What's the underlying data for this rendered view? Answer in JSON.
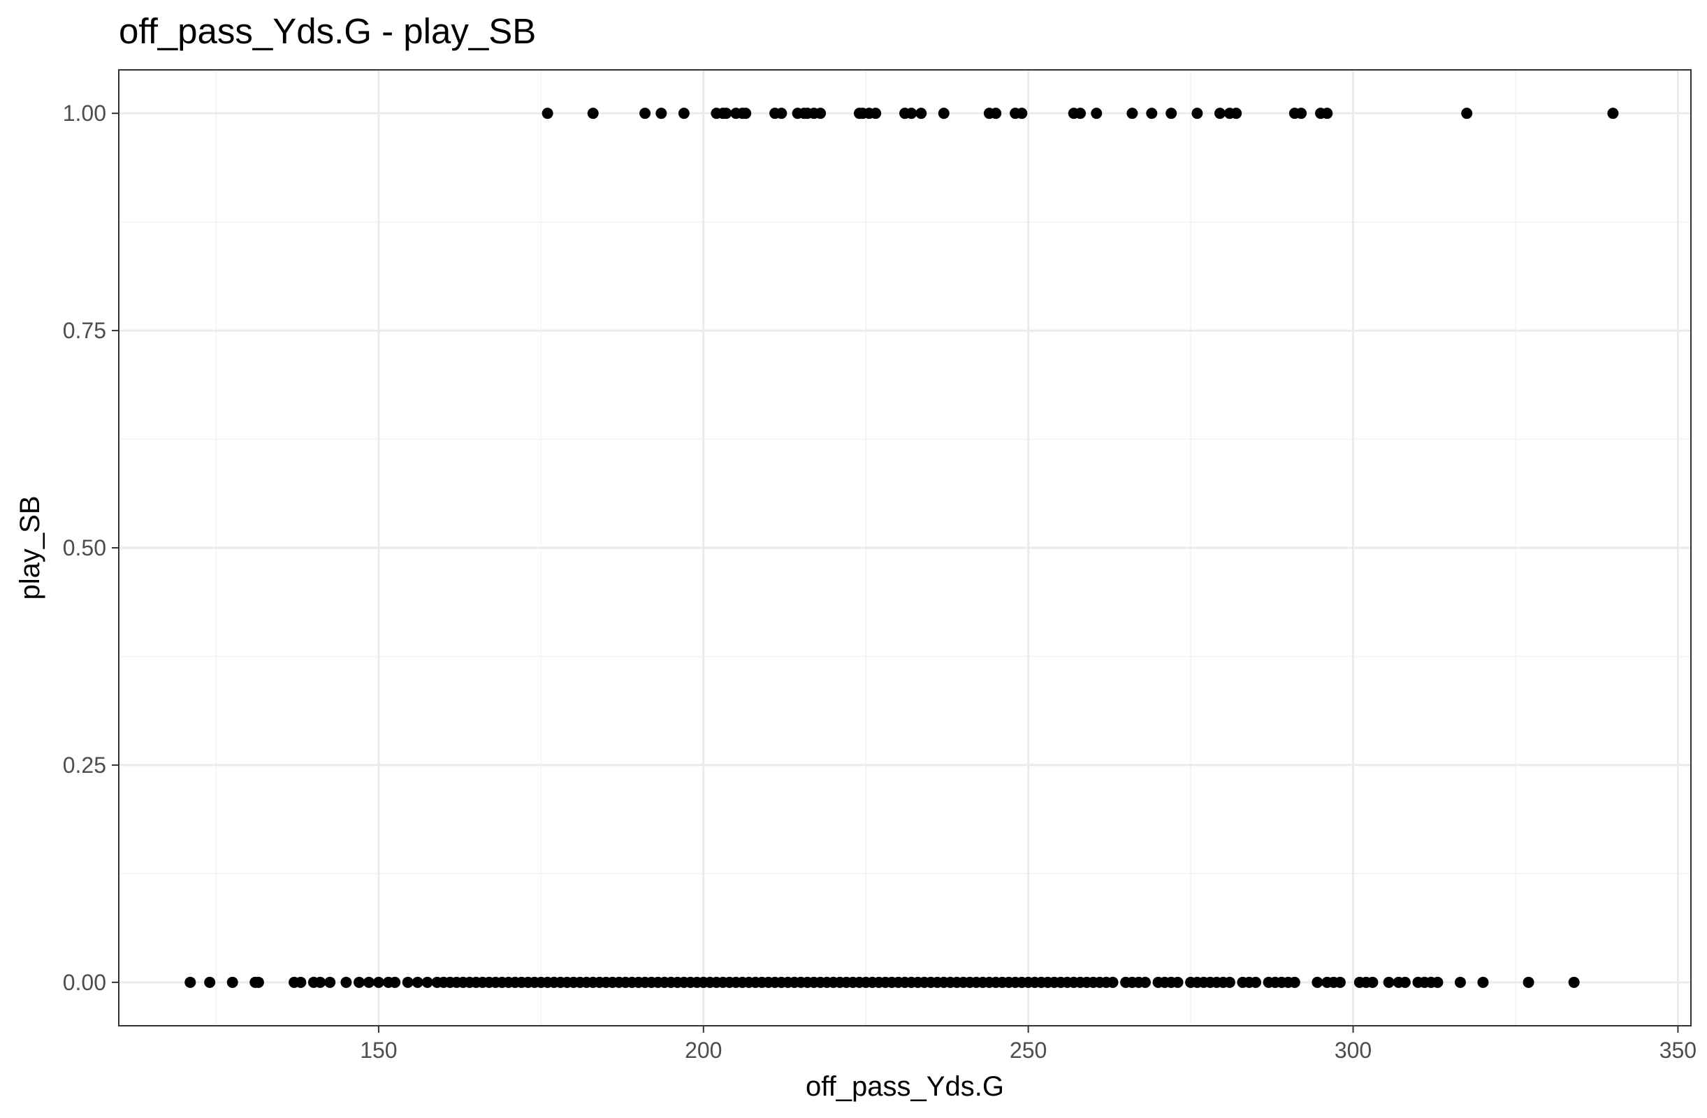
{
  "chart_data": {
    "type": "scatter",
    "title": "off_pass_Yds.G - play_SB",
    "xlabel": "off_pass_Yds.G",
    "ylabel": "play_SB",
    "xlim": [
      110,
      352
    ],
    "ylim": [
      -0.05,
      1.05
    ],
    "x_ticks": [
      150,
      200,
      250,
      300,
      350
    ],
    "x_tick_labels": [
      "150",
      "200",
      "250",
      "300",
      "350"
    ],
    "y_ticks": [
      0,
      0.25,
      0.5,
      0.75,
      1.0
    ],
    "y_tick_labels": [
      "0.00",
      "0.25",
      "0.50",
      "0.75",
      "1.00"
    ],
    "grid": true,
    "point_color": "#000000",
    "series": [
      {
        "y": 1,
        "x": [
          176,
          183,
          191,
          193.5,
          197,
          202,
          203,
          203.5,
          205,
          206,
          206.5,
          211,
          212,
          214.5,
          215.5,
          216,
          217,
          218,
          224,
          224.5,
          225.5,
          226.5,
          231,
          232,
          233.5,
          237,
          244,
          245,
          248,
          249,
          257,
          258,
          260.5,
          266,
          269,
          272,
          276,
          279.5,
          281,
          282,
          291,
          292,
          295,
          296,
          317.5,
          340
        ]
      },
      {
        "y": 0,
        "x": [
          121,
          124,
          127.5,
          131,
          131.5,
          137,
          138,
          140,
          141,
          142.5,
          145,
          147,
          148.5,
          150,
          151.5,
          152.5,
          154.5,
          156,
          157.5,
          159,
          160,
          161,
          162,
          163,
          164,
          165,
          166,
          167,
          168,
          169,
          170,
          171,
          172,
          173,
          174,
          175,
          176,
          177,
          178,
          179,
          180,
          181,
          182,
          183,
          184,
          185,
          186,
          187,
          188,
          189,
          190,
          191,
          192,
          193,
          194,
          195,
          196,
          197,
          198,
          199,
          200,
          201,
          202,
          203,
          204,
          205,
          206,
          207,
          208,
          209,
          210,
          211,
          212,
          213,
          214,
          215,
          216,
          217,
          218,
          219,
          220,
          221,
          222,
          223,
          224,
          225,
          226,
          227,
          228,
          229,
          230,
          231,
          232,
          233,
          234,
          235,
          236,
          237,
          238,
          239,
          240,
          241,
          242,
          243,
          244,
          245,
          246,
          247,
          248,
          249,
          250,
          251,
          252,
          253,
          254,
          255,
          256,
          257,
          258,
          259,
          260,
          261,
          262,
          263,
          265,
          266,
          267,
          268,
          270,
          271,
          272,
          273,
          275,
          276,
          277,
          278,
          279,
          280,
          281,
          283,
          284,
          285,
          287,
          288,
          289,
          290,
          291,
          294.5,
          296,
          297,
          298,
          301,
          302,
          303,
          305.5,
          307,
          308,
          310,
          311,
          312,
          313,
          316.5,
          320,
          327,
          334
        ]
      }
    ]
  }
}
